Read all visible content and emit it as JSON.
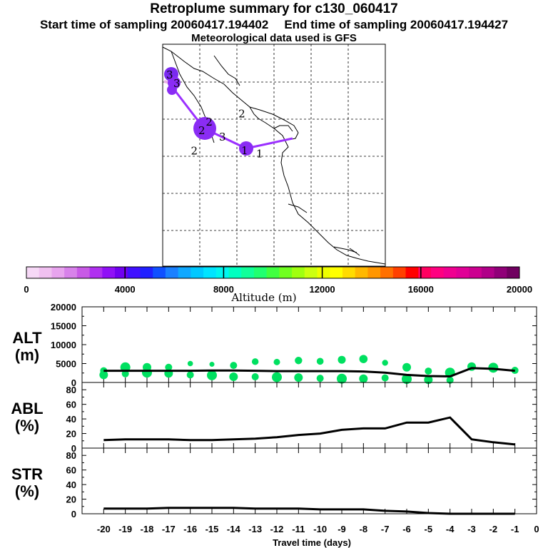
{
  "header": {
    "title": "Retroplume summary for c130_060417",
    "start_time": "Start time of sampling 20060417.194402",
    "end_time": "End time of sampling 20060417.194427",
    "met": "Meteorological data used is GFS"
  },
  "colors": {
    "trajectory": "#9b30ff",
    "trajectory_start": "#e8b0e8",
    "alt_dots": "#00e060",
    "line": "#000000",
    "colorbar": [
      "#f6d8f6",
      "#f0c0f0",
      "#e8a4ee",
      "#d882ea",
      "#c85ae6",
      "#b030f0",
      "#9010f6",
      "#7000f0",
      "#4010ff",
      "#2020ff",
      "#1050ff",
      "#1a80ff",
      "#10a8ff",
      "#00c8ff",
      "#00e4ff",
      "#00f6f0",
      "#00ffc0",
      "#10ff9a",
      "#20ff70",
      "#40ff40",
      "#70ff20",
      "#a0ff10",
      "#ccff10",
      "#eeff00",
      "#ffff00",
      "#ffdc00",
      "#ffb800",
      "#ff9600",
      "#ff7000",
      "#ff4000",
      "#ff0000",
      "#ff0060",
      "#ff0080",
      "#f00090",
      "#e00096",
      "#cc0090",
      "#b00088",
      "#900078",
      "#700060"
    ]
  },
  "map": {
    "labels": [
      {
        "text": "1",
        "lon": -97.4,
        "lat": 26.7
      },
      {
        "text": "2",
        "lon": -99.8,
        "lat": 32.1
      },
      {
        "text": "2",
        "lon": -104.2,
        "lat": 31.0
      },
      {
        "text": "3",
        "lon": -102.4,
        "lat": 29.0
      },
      {
        "text": "2",
        "lon": -106.2,
        "lat": 27.1
      }
    ]
  },
  "colorbar": {
    "label": "Altitude (m)",
    "tick_labels": [
      "0",
      "4000",
      "8000",
      "12000",
      "16000",
      "20000"
    ],
    "min": 0,
    "max": 20000
  },
  "chart_data": [
    {
      "type": "line",
      "panel": "ALT",
      "ylabel_line1": "ALT",
      "ylabel_line2": "(m)",
      "ylim": [
        0,
        20000
      ],
      "yticks": [
        "0",
        "5000",
        "10000",
        "15000",
        "20000"
      ],
      "x": [
        -20,
        -19,
        -18,
        -17,
        -16,
        -15,
        -14,
        -13,
        -12,
        -11,
        -10,
        -9,
        -8,
        -7,
        -6,
        -5,
        -4,
        -3,
        -2,
        -1
      ],
      "values": [
        3100,
        3100,
        3100,
        3100,
        3100,
        3150,
        3150,
        3100,
        3000,
        3000,
        3000,
        3000,
        2900,
        2600,
        2000,
        1700,
        1600,
        3800,
        3600,
        3100
      ],
      "scatter": [
        {
          "x": -20,
          "y": 3100
        },
        {
          "x": -20,
          "y": 2000
        },
        {
          "x": -19,
          "y": 4000
        },
        {
          "x": -19,
          "y": 2300
        },
        {
          "x": -18,
          "y": 4000
        },
        {
          "x": -18,
          "y": 2600
        },
        {
          "x": -17,
          "y": 4000
        },
        {
          "x": -17,
          "y": 2400
        },
        {
          "x": -16,
          "y": 5000
        },
        {
          "x": -16,
          "y": 2000
        },
        {
          "x": -15,
          "y": 4800
        },
        {
          "x": -15,
          "y": 1900
        },
        {
          "x": -14,
          "y": 4500
        },
        {
          "x": -14,
          "y": 1500
        },
        {
          "x": -13,
          "y": 5500
        },
        {
          "x": -13,
          "y": 1500
        },
        {
          "x": -12,
          "y": 5400
        },
        {
          "x": -12,
          "y": 1400
        },
        {
          "x": -11,
          "y": 5800
        },
        {
          "x": -11,
          "y": 1300
        },
        {
          "x": -10,
          "y": 5600
        },
        {
          "x": -10,
          "y": 1100
        },
        {
          "x": -9,
          "y": 6000
        },
        {
          "x": -9,
          "y": 1000
        },
        {
          "x": -8,
          "y": 6200
        },
        {
          "x": -8,
          "y": 1000
        },
        {
          "x": -7,
          "y": 5200
        },
        {
          "x": -7,
          "y": 1200
        },
        {
          "x": -6,
          "y": 4000
        },
        {
          "x": -6,
          "y": 900
        },
        {
          "x": -5,
          "y": 3000
        },
        {
          "x": -5,
          "y": 700
        },
        {
          "x": -4,
          "y": 2600
        },
        {
          "x": -4,
          "y": 600
        },
        {
          "x": -3,
          "y": 4200
        },
        {
          "x": -2,
          "y": 3900
        },
        {
          "x": -1,
          "y": 3200
        }
      ]
    },
    {
      "type": "line",
      "panel": "ABL",
      "ylabel_line1": "ABL",
      "ylabel_line2": "(%)",
      "ylim": [
        0,
        90
      ],
      "yticks": [
        "0",
        "20",
        "40",
        "60",
        "80"
      ],
      "x": [
        -20,
        -19,
        -18,
        -17,
        -16,
        -15,
        -14,
        -13,
        -12,
        -11,
        -10,
        -9,
        -8,
        -7,
        -6,
        -5,
        -4,
        -3,
        -2,
        -1
      ],
      "values": [
        11,
        12,
        12,
        12,
        11,
        11,
        12,
        13,
        15,
        18,
        20,
        25,
        27,
        27,
        35,
        35,
        42,
        12,
        8,
        5
      ]
    },
    {
      "type": "line",
      "panel": "STR",
      "ylabel_line1": "STR",
      "ylabel_line2": "(%)",
      "ylim": [
        0,
        90
      ],
      "yticks": [
        "0",
        "20",
        "40",
        "60",
        "80"
      ],
      "x": [
        -20,
        -19,
        -18,
        -17,
        -16,
        -15,
        -14,
        -13,
        -12,
        -11,
        -10,
        -9,
        -8,
        -7,
        -6,
        -5,
        -4,
        -3,
        -2,
        -1
      ],
      "values": [
        7,
        7,
        7,
        8,
        8,
        8,
        8,
        7,
        7,
        7,
        6,
        6,
        6,
        4,
        3,
        1,
        0,
        0,
        0,
        0
      ]
    }
  ],
  "xaxis": {
    "label": "Travel time (days)",
    "ticks": [
      "-20",
      "-19",
      "-18",
      "-17",
      "-16",
      "-15",
      "-14",
      "-13",
      "-12",
      "-11",
      "-10",
      "-9",
      "-8",
      "-7",
      "-6",
      "-5",
      "-4",
      "-3",
      "-2",
      "-1",
      "0"
    ],
    "min": -21,
    "max": 0
  }
}
